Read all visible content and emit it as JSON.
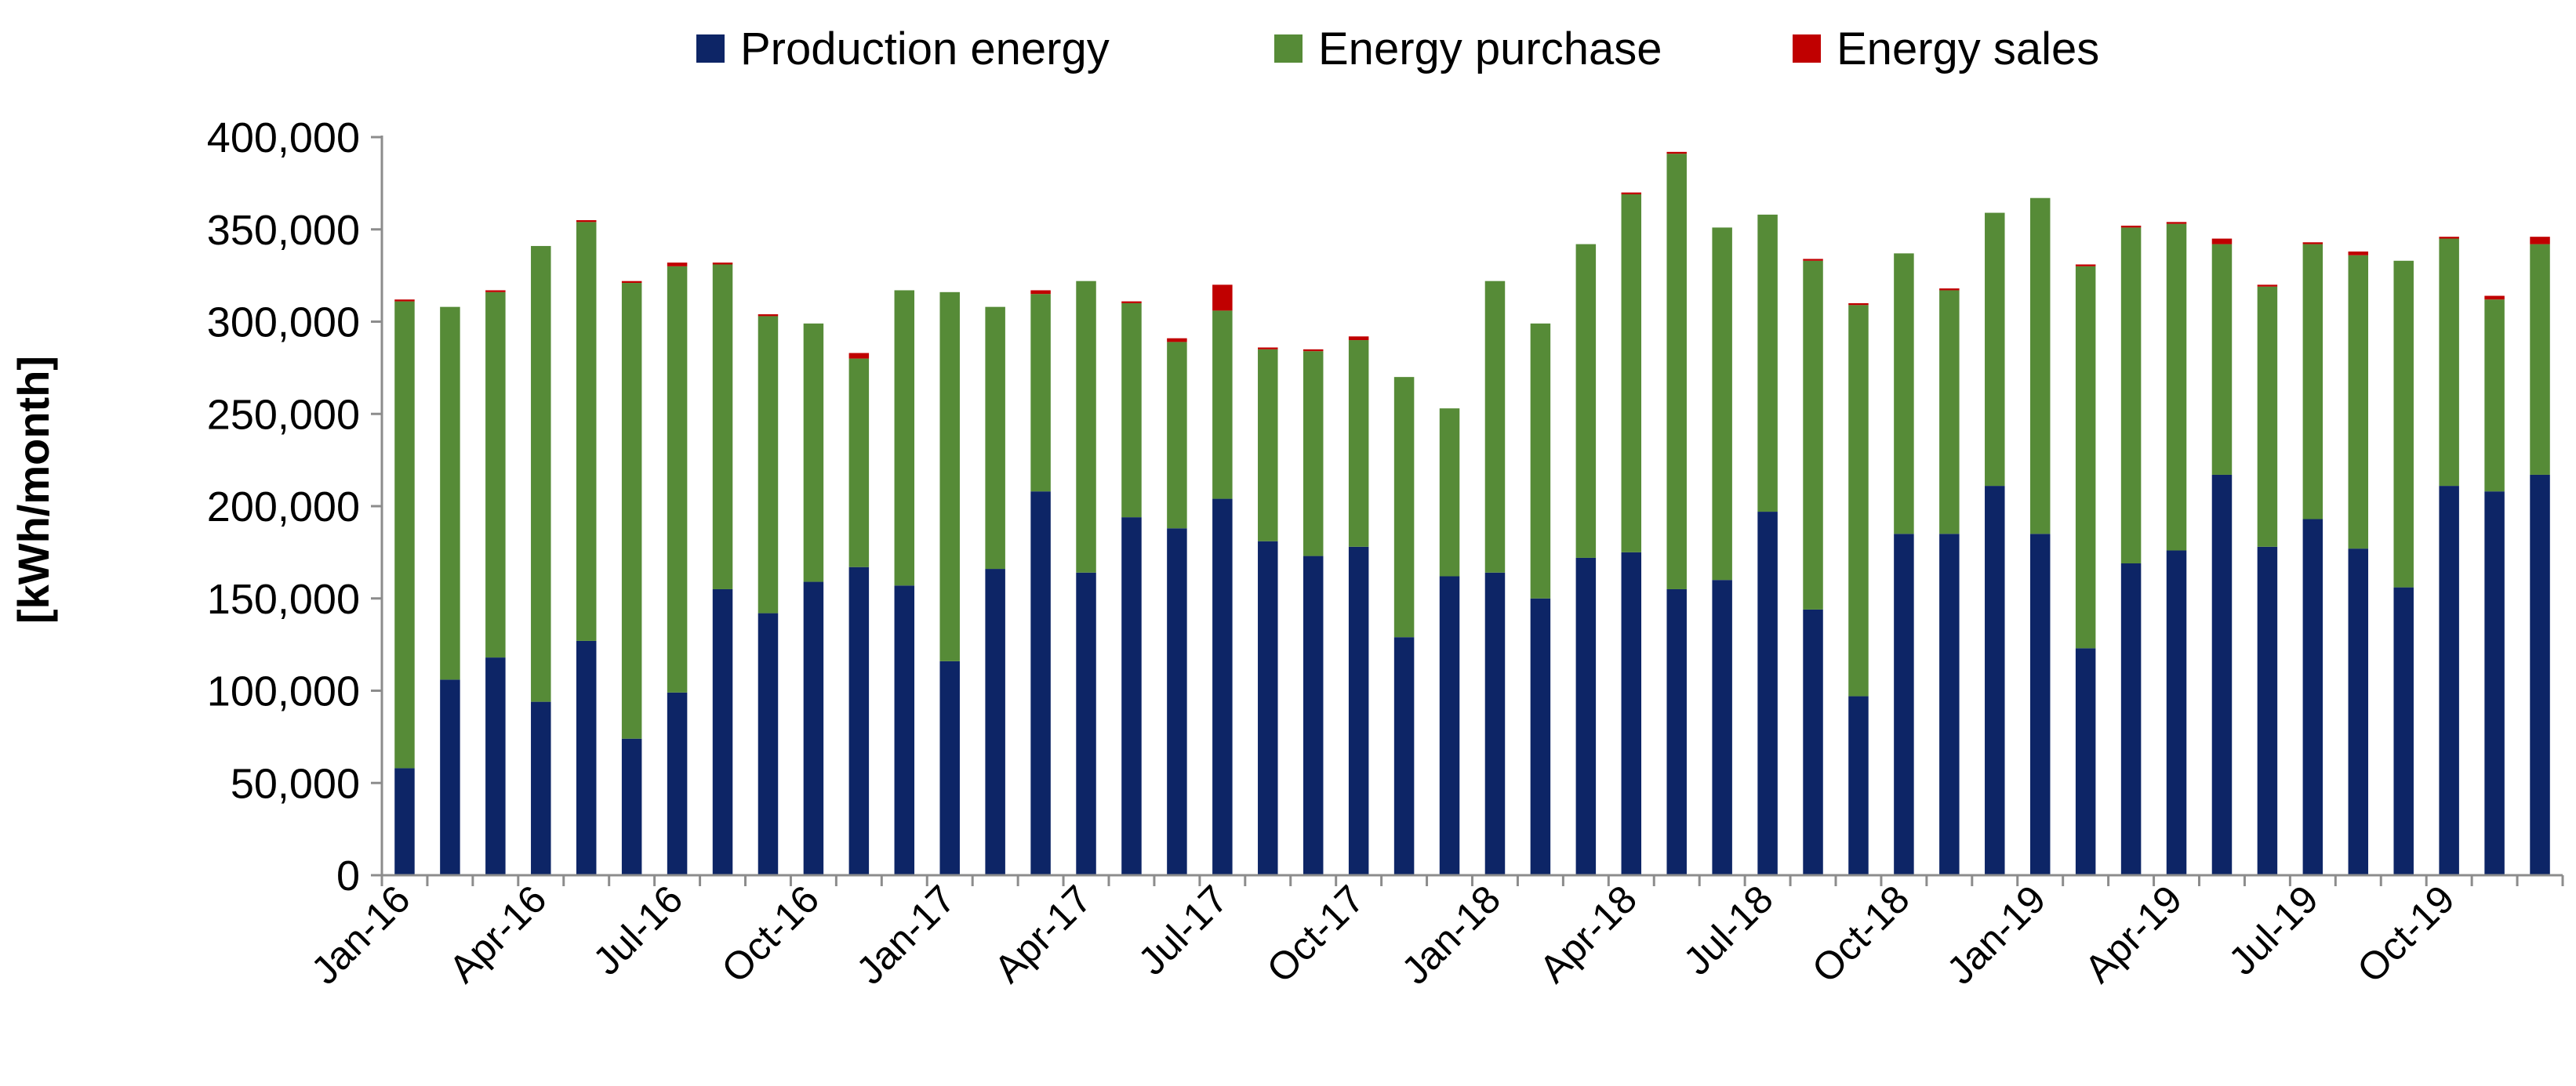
{
  "chart_data": {
    "type": "bar",
    "stacked": true,
    "title": "",
    "xlabel": "",
    "ylabel": "[kWh/month]",
    "ylim": [
      0,
      400000
    ],
    "yticks": [
      0,
      50000,
      100000,
      150000,
      200000,
      250000,
      300000,
      350000,
      400000
    ],
    "ytick_labels": [
      "0",
      "50,000",
      "100,000",
      "150,000",
      "200,000",
      "250,000",
      "300,000",
      "350,000",
      "400,000"
    ],
    "legend_position": "top-center",
    "categories": [
      "Jan-16",
      "Feb-16",
      "Mar-16",
      "Apr-16",
      "May-16",
      "Jun-16",
      "Jul-16",
      "Aug-16",
      "Sep-16",
      "Oct-16",
      "Nov-16",
      "Dec-16",
      "Jan-17",
      "Feb-17",
      "Mar-17",
      "Apr-17",
      "May-17",
      "Jun-17",
      "Jul-17",
      "Aug-17",
      "Sep-17",
      "Oct-17",
      "Nov-17",
      "Dec-17",
      "Jan-18",
      "Feb-18",
      "Mar-18",
      "Apr-18",
      "May-18",
      "Jun-18",
      "Jul-18",
      "Aug-18",
      "Sep-18",
      "Oct-18",
      "Nov-18",
      "Dec-18",
      "Jan-19",
      "Feb-19",
      "Mar-19",
      "Apr-19",
      "May-19",
      "Jun-19",
      "Jul-19",
      "Aug-19",
      "Sep-19",
      "Oct-19",
      "Nov-19",
      "Dec-19"
    ],
    "x_tick_labels": [
      "Jan-16",
      "Apr-16",
      "Jul-16",
      "Oct-16",
      "Jan-17",
      "Apr-17",
      "Jul-17",
      "Oct-17",
      "Jan-18",
      "Apr-18",
      "Jul-18",
      "Oct-18",
      "Jan-19",
      "Apr-19",
      "Jul-19",
      "Oct-19"
    ],
    "series": [
      {
        "name": "Production energy",
        "color": "#0d2566",
        "values": [
          58000,
          106000,
          118000,
          94000,
          127000,
          74000,
          99000,
          155000,
          142000,
          159000,
          167000,
          157000,
          116000,
          166000,
          208000,
          164000,
          194000,
          188000,
          204000,
          181000,
          173000,
          178000,
          129000,
          162000,
          164000,
          150000,
          172000,
          175000,
          155000,
          160000,
          197000,
          144000,
          97000,
          185000,
          185000,
          211000,
          185000,
          123000,
          169000,
          176000,
          217000,
          178000,
          193000,
          177000,
          156000,
          211000,
          208000,
          217000
        ]
      },
      {
        "name": "Energy purchase",
        "color": "#568b37",
        "values": [
          253000,
          202000,
          198000,
          247000,
          227000,
          247000,
          231000,
          176000,
          161000,
          140000,
          113000,
          160000,
          200000,
          142000,
          107000,
          158000,
          116000,
          101000,
          102000,
          104000,
          111000,
          112000,
          141000,
          91000,
          158000,
          149000,
          170000,
          194000,
          236000,
          191000,
          161000,
          189000,
          212000,
          152000,
          132000,
          148000,
          182000,
          207000,
          182000,
          177000,
          125000,
          141000,
          149000,
          159000,
          177000,
          134000,
          104000,
          125000
        ]
      },
      {
        "name": "Energy sales",
        "color": "#c00000",
        "values": [
          1000,
          0,
          1000,
          0,
          1000,
          1000,
          2000,
          1000,
          1000,
          0,
          3000,
          0,
          0,
          0,
          2000,
          0,
          1000,
          2000,
          14000,
          1000,
          1000,
          2000,
          0,
          0,
          0,
          0,
          0,
          1000,
          1000,
          0,
          0,
          1000,
          1000,
          0,
          1000,
          0,
          0,
          1000,
          1000,
          1000,
          3000,
          1000,
          1000,
          2000,
          0,
          1000,
          2000,
          4000
        ]
      }
    ]
  }
}
